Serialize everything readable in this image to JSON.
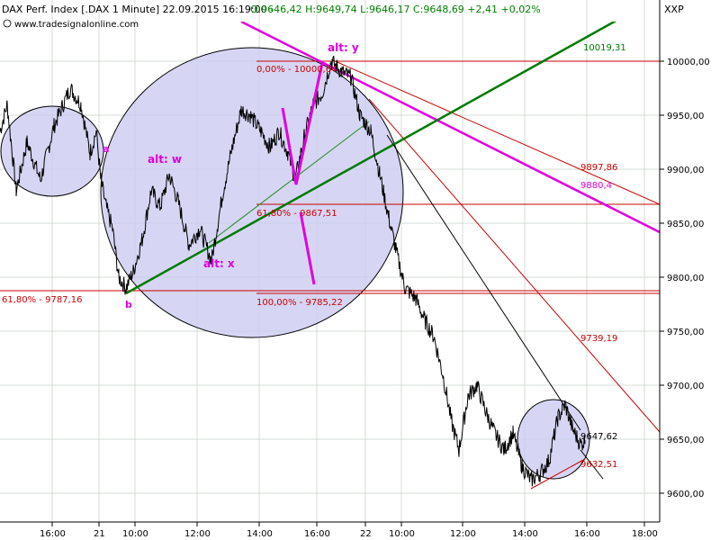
{
  "header": {
    "instrument": "DAX Perf. Index [.DAX  1 Minute] 22.09.2015 16:19:00 -",
    "ohlc": "O:9646,42 H:9649,74 L:9646,17 C:9648,69 +2,41 +0,02%",
    "source": "www.tradesignalonline.com",
    "axis_badge": "XXP"
  },
  "colors": {
    "price": "#000000",
    "fib": "#cc0000",
    "trend_green": "#007a00",
    "channel": "#e000e0",
    "wave_label": "#dd00dd",
    "ellipse_fill": "#c8c8f0",
    "ellipse_stroke": "#000000",
    "grid": "#d4dcd4",
    "header_green": "#008000"
  },
  "chart_data": {
    "type": "line",
    "title": "DAX Perf. Index [.DAX  1 Minute]",
    "xlabel": "",
    "ylabel": "",
    "ylim": [
      9580,
      10050
    ],
    "x_tick_labels": [
      "16:00",
      "21",
      "10:00",
      "12:00",
      "14:00",
      "16:00",
      "22",
      "10:00",
      "12:00",
      "14:00",
      "16:00",
      "18:00"
    ],
    "y_tick_labels": [
      "10000,00",
      "9950,00",
      "9900,00",
      "9850,00",
      "9800,00",
      "9750,00",
      "9700,00",
      "9650,00",
      "9600,00"
    ],
    "y_ticks": [
      10000,
      9950,
      9900,
      9850,
      9800,
      9750,
      9700,
      9650,
      9600
    ],
    "series": [
      {
        "anchors": [
          [
            0,
            9935
          ],
          [
            8,
            9960
          ],
          [
            18,
            9880
          ],
          [
            30,
            9925
          ],
          [
            45,
            9890
          ],
          [
            60,
            9940
          ],
          [
            78,
            9975
          ],
          [
            90,
            9960
          ],
          [
            100,
            9915
          ],
          [
            107,
            9935
          ],
          [
            112,
            9890
          ],
          [
            118,
            9865
          ],
          [
            125,
            9845
          ],
          [
            132,
            9800
          ],
          [
            140,
            9790
          ],
          [
            148,
            9805
          ],
          [
            158,
            9835
          ],
          [
            168,
            9880
          ],
          [
            178,
            9865
          ],
          [
            188,
            9895
          ],
          [
            198,
            9870
          ],
          [
            210,
            9830
          ],
          [
            222,
            9845
          ],
          [
            235,
            9815
          ],
          [
            248,
            9880
          ],
          [
            258,
            9920
          ],
          [
            268,
            9955
          ],
          [
            278,
            9950
          ],
          [
            290,
            9935
          ],
          [
            300,
            9920
          ],
          [
            310,
            9935
          ],
          [
            320,
            9915
          ],
          [
            328,
            9890
          ],
          [
            338,
            9930
          ],
          [
            348,
            9960
          ],
          [
            358,
            9970
          ],
          [
            368,
            10000
          ],
          [
            380,
            9990
          ],
          [
            390,
            9985
          ],
          [
            400,
            9950
          ],
          [
            412,
            9935
          ],
          [
            422,
            9895
          ],
          [
            432,
            9855
          ],
          [
            440,
            9825
          ],
          [
            450,
            9790
          ],
          [
            462,
            9780
          ],
          [
            472,
            9760
          ],
          [
            482,
            9745
          ],
          [
            492,
            9710
          ],
          [
            502,
            9665
          ],
          [
            510,
            9640
          ],
          [
            520,
            9690
          ],
          [
            530,
            9700
          ],
          [
            540,
            9675
          ],
          [
            550,
            9655
          ],
          [
            560,
            9640
          ],
          [
            570,
            9655
          ],
          [
            580,
            9625
          ],
          [
            590,
            9612
          ],
          [
            600,
            9618
          ],
          [
            610,
            9630
          ],
          [
            620,
            9670
          ],
          [
            628,
            9682
          ],
          [
            636,
            9660
          ],
          [
            645,
            9645
          ],
          [
            650,
            9649
          ]
        ]
      }
    ],
    "fibonacci_levels": [
      {
        "label": "0,00% - 10000,64",
        "value": 10000.64
      },
      {
        "label": "61,80% - 9867,51",
        "value": 9867.51
      },
      {
        "label": "100,00% - 9785,22",
        "value": 9785.22
      },
      {
        "label": "61,80% - 9787,16",
        "value": 9787.16
      }
    ],
    "trendline_labels": [
      {
        "label": "10019,31",
        "value": 10019.31
      },
      {
        "label": "9897,86",
        "value": 9897.86
      },
      {
        "label": "9880,4",
        "value": 9880.4
      },
      {
        "label": "9739,19",
        "value": 9739.19
      },
      {
        "label": "9647,62",
        "value": 9647.62
      },
      {
        "label": "9632,51",
        "value": 9632.51
      }
    ],
    "wave_labels": [
      "alt: w",
      "alt: x",
      "alt: y",
      "a",
      "b"
    ],
    "grid": true
  }
}
